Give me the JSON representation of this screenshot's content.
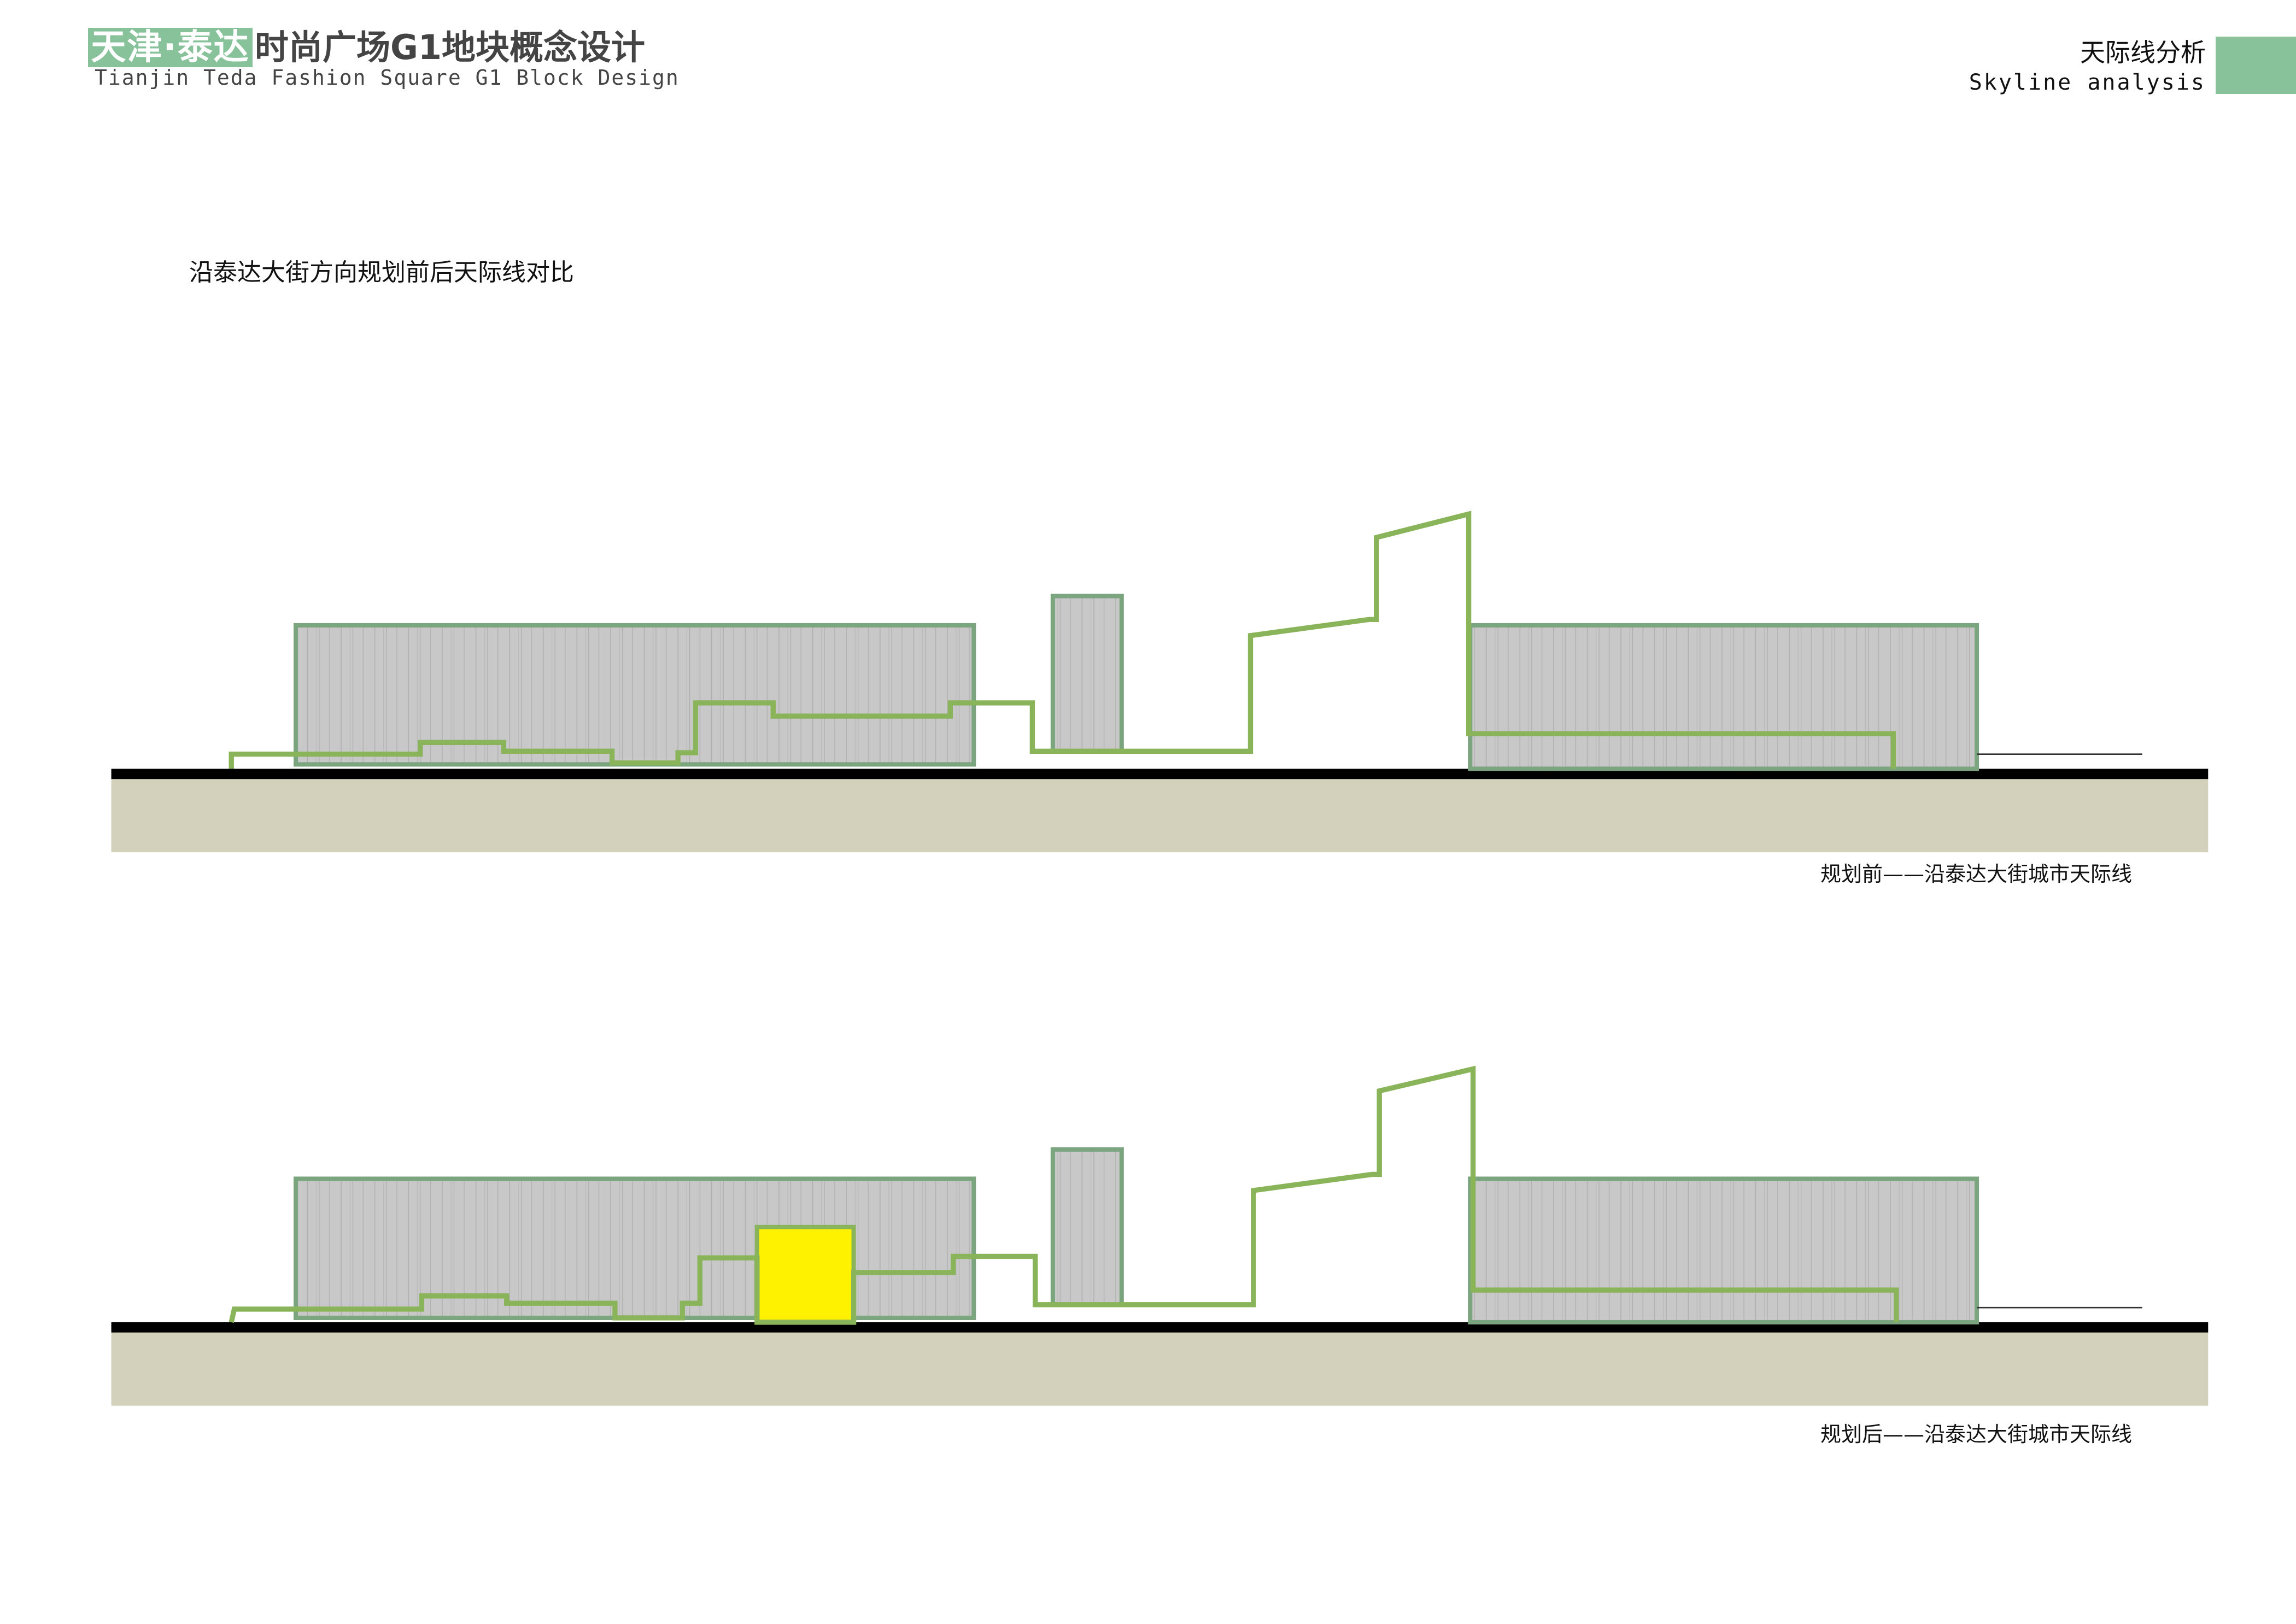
{
  "header": {
    "logo_text": "天津·泰达",
    "title_cn": "时尚广场G1地块概念设计",
    "title_en": "Tianjin Teda Fashion Square G1 Block Design"
  },
  "section": {
    "title_cn": "天际线分析",
    "title_en": "Skyline analysis"
  },
  "subtitle": "沿泰达大街方向规划前后天际线对比",
  "diagrams": [
    {
      "caption": "规划前——沿泰达大街城市天际线",
      "new_building": false
    },
    {
      "caption": "规划后——沿泰达大街城市天际线",
      "new_building": true
    }
  ],
  "colors": {
    "brand_green": "#88c29a",
    "skyline_green": "#8ab45a",
    "building_border": "#7aa57e",
    "building_fill": "#c8c8c8",
    "ground": "#d3d1bc",
    "road": "#000000",
    "new_building": "#fff200"
  }
}
